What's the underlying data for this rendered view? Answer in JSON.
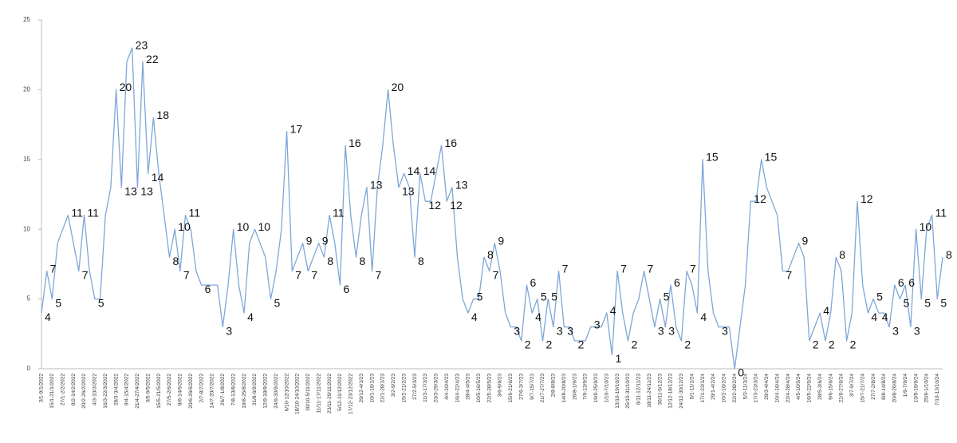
{
  "chart_data": {
    "type": "line",
    "color": "#7ea6d8",
    "ylim": [
      0,
      25
    ],
    "yticks": [
      0,
      5,
      10,
      15,
      20,
      25
    ],
    "categories": [
      "3/1-9/1/2022",
      null,
      "15/1-21/1/2022",
      null,
      "27/1-2/2/2022",
      null,
      "8/2-14/2/2022",
      null,
      "20/2-26/2/2022",
      null,
      "4/3-10/3/2022",
      null,
      "16/3-22/3/2022",
      null,
      "28/3-3/4/2022",
      null,
      "9/4-15/4/2022",
      null,
      "21/4-27/4/2022",
      null,
      "3/5-9/5/2022",
      null,
      "15/5-21/5/2022",
      null,
      "27/5-2/6/2022",
      null,
      "8/6-14/6/2022",
      null,
      "20/6-26/6/2022",
      null,
      "2/7-8/7/2022",
      null,
      "14/7-20/7/2022",
      null,
      "26/7-1/8/2022",
      null,
      "7/8-13/8/2022",
      null,
      "19/8-25/8/2022",
      null,
      "31/8-6/9/2022",
      null,
      "12/9-18/9/2022",
      null,
      "24/9-30/9/2022",
      null,
      "6/10-12/10/2022",
      null,
      "18/10-24/10/2022",
      null,
      "30/10-5/11/2022",
      null,
      "11/11-17/11/2022",
      null,
      "23/11-29/11/2022",
      null,
      "5/12-11/12/2022",
      null,
      "17/12-23/12/2022",
      null,
      "29/12-4/1/23",
      null,
      "10/1-16/1/23",
      null,
      "22/1-28/1/23",
      null,
      "3/2-9/2/23",
      null,
      "15/2-21/2/23",
      null,
      "27/2-5/3/23",
      null,
      "11/3-17/3/23",
      null,
      "23/3-29/3/23",
      null,
      "4/4-10/4/23",
      null,
      "16/4-22/4/23",
      null,
      "28/4-4/5/23",
      null,
      "10/5-16/5/23",
      null,
      "22/5-28/5/23",
      null,
      "3/6-9/6/23",
      null,
      "15/6-21/6/23",
      null,
      "27/6-3/7/23",
      null,
      "9/7-15/7/23",
      null,
      "21/7-27/7/23",
      null,
      "2/8-8/8/23",
      null,
      "14/8-20/8/23",
      null,
      "26/8-1/9/23",
      null,
      "7/9-13/9/23",
      null,
      "19/9-25/9/23",
      null,
      "1/10-7/10/23",
      null,
      "13/10-19/10/23",
      null,
      "25/10-31/10/23",
      null,
      "6/11-12/11/23",
      null,
      "18/11-24/11/23",
      null,
      "30/11-6/12/23",
      null,
      "12/12-18/12/23",
      null,
      "24/12-30/12/23",
      null,
      "5/1-11/1/24",
      null,
      "17/1-23/1/24",
      null,
      "29/1-4/2/24",
      null,
      "10/2-16/2/24",
      null,
      "22/2-28/2/24",
      null,
      "5/3-11/3/24",
      null,
      "17/3-23/3/24",
      null,
      "29/3-4/4/24",
      null,
      "10/4-16/4/24",
      null,
      "22/4-28/4/24",
      null,
      "4/5-10/5/24",
      null,
      "16/5-22/5/24",
      null,
      "28/5-3/6/24",
      null,
      "9/6-15/6/24",
      null,
      "21/6-27/6/24",
      null,
      "3/7-9/7/24",
      null,
      "15/7-21/7/24",
      null,
      "27/7-2/8/24",
      null,
      "8/8-14/8/24",
      null,
      "20/8-26/8/24",
      null,
      "1/9-7/9/24",
      null,
      "13/9-19/9/24",
      null,
      "25/9-1/10/24",
      null,
      "7/10-13/10/24",
      null
    ],
    "values": [
      4,
      7,
      5,
      9,
      10,
      11,
      9,
      7,
      11,
      7,
      5,
      5,
      11,
      13,
      20,
      13,
      22,
      23,
      13,
      22,
      14,
      18,
      14,
      11,
      8,
      10,
      7,
      11,
      10,
      7,
      6,
      6,
      6,
      6,
      3,
      6,
      10,
      6,
      4,
      9,
      10,
      9,
      8,
      5,
      7,
      10,
      17,
      7,
      8,
      9,
      7,
      8,
      9,
      8,
      11,
      9,
      6,
      16,
      11,
      8,
      11,
      13,
      7,
      13,
      16,
      20,
      16,
      13,
      14,
      13,
      8,
      14,
      12,
      12,
      14,
      16,
      12,
      13,
      8,
      5,
      4,
      5,
      5,
      8,
      7,
      9,
      7,
      4,
      3,
      3,
      2,
      6,
      4,
      5,
      2,
      5,
      3,
      7,
      3,
      3,
      2,
      2,
      2,
      3,
      3,
      3,
      4,
      1,
      7,
      4,
      2,
      4,
      5,
      7,
      5,
      3,
      5,
      3,
      6,
      3,
      2,
      7,
      6,
      4,
      15,
      7,
      4,
      3,
      3,
      3,
      0,
      3,
      6,
      12,
      12,
      15,
      13,
      12,
      11,
      7,
      7,
      8,
      9,
      8,
      2,
      3,
      4,
      2,
      4,
      8,
      7,
      2,
      4,
      12,
      6,
      4,
      5,
      4,
      4,
      3,
      6,
      5,
      6,
      3,
      10,
      5,
      10,
      11,
      5,
      8
    ]
  }
}
